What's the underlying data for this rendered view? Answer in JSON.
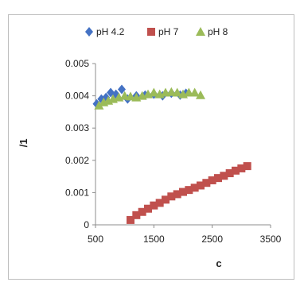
{
  "chart_data": {
    "type": "scatter",
    "xlabel": "c",
    "ylabel": "/1",
    "xlim": [
      500,
      3500
    ],
    "ylim": [
      0,
      0.005
    ],
    "x_ticks": [
      "500",
      "1500",
      "2500",
      "3500"
    ],
    "y_ticks": [
      "0",
      "0.001",
      "0.002",
      "0.003",
      "0.004",
      "0.005"
    ],
    "grid": false,
    "legend_position": "top",
    "series": [
      {
        "name": "pH 4.2",
        "marker": "diamond",
        "color": "#4472C4",
        "x": [
          520,
          600,
          680,
          760,
          850,
          950,
          1050,
          1200,
          1350,
          1500,
          1650,
          1800,
          1950,
          2050
        ],
        "y": [
          0.00375,
          0.0039,
          0.00395,
          0.0041,
          0.00405,
          0.0042,
          0.0039,
          0.004,
          0.00402,
          0.00405,
          0.004,
          0.00408,
          0.00402,
          0.00408
        ]
      },
      {
        "name": "pH 7",
        "marker": "square",
        "color": "#C0504D",
        "x": [
          1100,
          1200,
          1300,
          1400,
          1500,
          1600,
          1700,
          1800,
          1900,
          2000,
          2100,
          2200,
          2300,
          2400,
          2500,
          2600,
          2700,
          2800,
          2900,
          3000,
          3100
        ],
        "y": [
          0.00015,
          0.0003,
          0.0004,
          0.0005,
          0.0006,
          0.00068,
          0.00078,
          0.00088,
          0.00095,
          0.00102,
          0.00108,
          0.00115,
          0.00122,
          0.0013,
          0.00138,
          0.00145,
          0.00152,
          0.0016,
          0.00168,
          0.00175,
          0.00182
        ]
      },
      {
        "name": "pH 8",
        "marker": "triangle",
        "color": "#9BBB59",
        "x": [
          560,
          640,
          720,
          800,
          900,
          1000,
          1100,
          1200,
          1300,
          1400,
          1500,
          1600,
          1700,
          1800,
          1900,
          2000,
          2100,
          2200,
          2300
        ],
        "y": [
          0.0037,
          0.0038,
          0.00385,
          0.0039,
          0.00395,
          0.004,
          0.00398,
          0.00395,
          0.004,
          0.00405,
          0.0041,
          0.00405,
          0.0041,
          0.00412,
          0.0041,
          0.00405,
          0.0041,
          0.0041,
          0.00402
        ]
      }
    ]
  }
}
